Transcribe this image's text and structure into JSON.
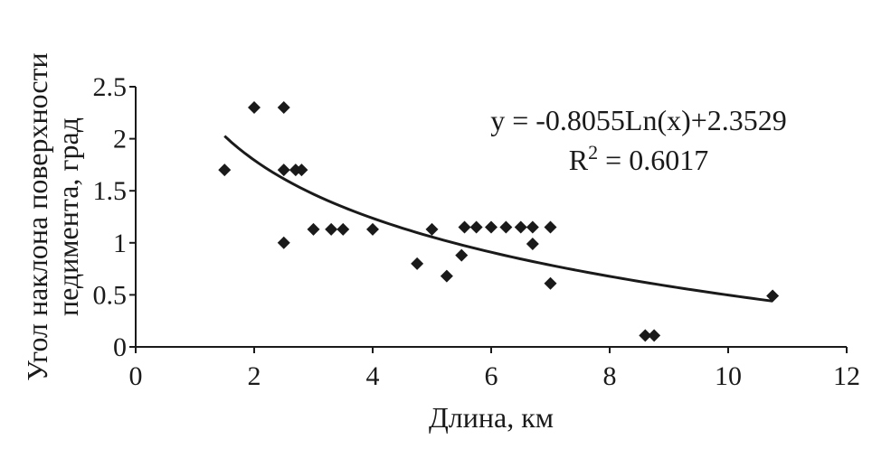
{
  "chart_data": {
    "type": "scatter",
    "title": "",
    "xlabel": "Длина, км",
    "ylabel_line1": "Угол наклона поверхности",
    "ylabel_line2": "педимента, град",
    "xlim": [
      0,
      12
    ],
    "ylim": [
      0,
      2.5
    ],
    "x_ticks": [
      "0",
      "2",
      "4",
      "6",
      "8",
      "10",
      "12"
    ],
    "y_ticks": [
      "0",
      "0.5",
      "1",
      "1.5",
      "2",
      "2.5"
    ],
    "grid": false,
    "marker": "diamond",
    "points": [
      {
        "x": 1.5,
        "y": 1.7
      },
      {
        "x": 2.0,
        "y": 2.3
      },
      {
        "x": 2.5,
        "y": 2.3
      },
      {
        "x": 2.5,
        "y": 1.7
      },
      {
        "x": 2.7,
        "y": 1.7
      },
      {
        "x": 2.8,
        "y": 1.7
      },
      {
        "x": 2.5,
        "y": 1.0
      },
      {
        "x": 3.0,
        "y": 1.13
      },
      {
        "x": 3.3,
        "y": 1.13
      },
      {
        "x": 3.5,
        "y": 1.13
      },
      {
        "x": 4.0,
        "y": 1.13
      },
      {
        "x": 4.75,
        "y": 0.8
      },
      {
        "x": 5.0,
        "y": 1.13
      },
      {
        "x": 5.25,
        "y": 0.68
      },
      {
        "x": 5.5,
        "y": 0.88
      },
      {
        "x": 5.55,
        "y": 1.15
      },
      {
        "x": 5.75,
        "y": 1.15
      },
      {
        "x": 6.0,
        "y": 1.15
      },
      {
        "x": 6.25,
        "y": 1.15
      },
      {
        "x": 6.5,
        "y": 1.15
      },
      {
        "x": 6.7,
        "y": 1.15
      },
      {
        "x": 6.7,
        "y": 0.99
      },
      {
        "x": 7.0,
        "y": 1.15
      },
      {
        "x": 7.0,
        "y": 0.61
      },
      {
        "x": 8.6,
        "y": 0.11
      },
      {
        "x": 8.75,
        "y": 0.11
      },
      {
        "x": 10.75,
        "y": 0.49
      }
    ],
    "trendline": {
      "type": "logarithmic",
      "a": -0.8055,
      "b": 2.3529,
      "x_range": [
        1.5,
        10.75
      ],
      "equation_label": "y = -0.8055Ln(x)+2.3529",
      "r2_label_prefix": "R",
      "r2_label_sup": "2",
      "r2_label_value": " = 0.6017"
    }
  }
}
